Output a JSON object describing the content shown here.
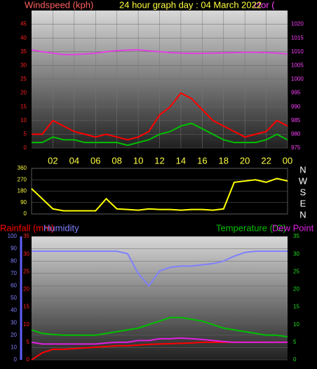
{
  "chart_data": [
    {
      "type": "line",
      "title": "24 hour graph day : 04 March 2022",
      "ylabel": "Windspeed (kph)",
      "y2label": "ctor (",
      "x": [
        0,
        1,
        2,
        3,
        4,
        5,
        6,
        7,
        8,
        9,
        10,
        11,
        12,
        13,
        14,
        15,
        16,
        17,
        18,
        19,
        20,
        21,
        22,
        23,
        24
      ],
      "xlim": [
        0,
        24
      ],
      "xticks": [
        {
          "value": 2,
          "label": "02"
        },
        {
          "value": 4,
          "label": "04"
        },
        {
          "value": 6,
          "label": "06"
        },
        {
          "value": 8,
          "label": "08"
        },
        10,
        12,
        14,
        16,
        18,
        20,
        22,
        {
          "value": 24,
          "label": "00"
        }
      ],
      "ylim": [
        0,
        50
      ],
      "yticks": [
        0,
        5,
        10,
        15,
        20,
        25,
        30,
        35,
        40,
        45
      ],
      "ycolor": "#ff2020",
      "y2lim": [
        975,
        1025
      ],
      "y2ticks": [
        975,
        980,
        985,
        990,
        995,
        1000,
        1005,
        1010,
        1015,
        1020
      ],
      "y2color": "#ff40ff",
      "grid": true,
      "series": [
        {
          "color": "#ff0000",
          "values": [
            5,
            5,
            10,
            8,
            6,
            5,
            4,
            5,
            4,
            3,
            4,
            6,
            12,
            15,
            20,
            18,
            14,
            10,
            8,
            6,
            4,
            5,
            6,
            10,
            8
          ]
        },
        {
          "color": "#00c000",
          "values": [
            2,
            2,
            4,
            3,
            3,
            2,
            2,
            2,
            2,
            1,
            2,
            3,
            5,
            6,
            8,
            9,
            7,
            5,
            3,
            2,
            2,
            2,
            3,
            5,
            3
          ]
        },
        {
          "color": "#e040e0",
          "axis": "y2",
          "values": [
            1010.7,
            1010,
            1009.5,
            1009,
            1009,
            1009.2,
            1009.5,
            1010,
            1010.4,
            1010.6,
            1010.7,
            1010.3,
            1010,
            1009.7,
            1009.5,
            1009.4,
            1009.4,
            1009.5,
            1009.6,
            1009.7,
            1009.8,
            1009.8,
            1009.7,
            1009.5,
            1009.2
          ]
        }
      ]
    },
    {
      "type": "line",
      "x": [
        0,
        1,
        2,
        3,
        4,
        5,
        6,
        7,
        8,
        9,
        10,
        11,
        12,
        13,
        14,
        15,
        16,
        17,
        18,
        19,
        20,
        21,
        22,
        23,
        24
      ],
      "xlim": [
        0,
        24
      ],
      "ylim": [
        0,
        360
      ],
      "yticks": [
        0,
        90,
        180,
        270,
        360
      ],
      "ycolor": "#ffff40",
      "y2lim": [
        0,
        360
      ],
      "y2ticks": [
        {
          "value": 0,
          "label": "N"
        },
        {
          "value": 90,
          "label": "E"
        },
        {
          "value": 180,
          "label": "S"
        },
        {
          "value": 270,
          "label": "W"
        },
        {
          "value": 360,
          "label": "N"
        }
      ],
      "y2color": "#ffffff",
      "grid": true,
      "series": [
        {
          "color": "#ffff00",
          "values": [
            200,
            120,
            40,
            25,
            25,
            25,
            25,
            120,
            40,
            35,
            30,
            40,
            35,
            35,
            30,
            35,
            35,
            30,
            40,
            250,
            260,
            270,
            250,
            280,
            260
          ]
        }
      ]
    },
    {
      "type": "line",
      "x": [
        0,
        1,
        2,
        3,
        4,
        5,
        6,
        7,
        8,
        9,
        10,
        11,
        12,
        13,
        14,
        15,
        16,
        17,
        18,
        19,
        20,
        21,
        22,
        23,
        24
      ],
      "xlim": [
        0,
        24
      ],
      "ylim": [
        0,
        100
      ],
      "yticks": [
        0,
        10,
        20,
        30,
        40,
        50,
        60,
        70,
        80,
        90,
        100
      ],
      "ycolor": "#8080ff",
      "y3lim": [
        0,
        35
      ],
      "y3ticks": [
        0,
        5,
        10,
        15,
        20,
        25,
        30,
        35
      ],
      "y3color": "#ff2020",
      "y2lim": [
        0,
        35
      ],
      "y2ticks": [
        0,
        5,
        10,
        15,
        20,
        25,
        30,
        35
      ],
      "y2color": "#20e020",
      "grid": true,
      "series": [
        {
          "name": "Rainfall (mm)",
          "color": "#ff0000",
          "axis": "y3",
          "values": [
            0,
            2,
            3,
            3,
            3.2,
            3.4,
            3.6,
            3.8,
            4,
            4,
            4.2,
            4.4,
            4.5,
            4.6,
            4.7,
            4.8,
            5,
            5,
            5,
            5,
            5,
            5,
            5,
            5,
            5
          ]
        },
        {
          "name": "Humidity",
          "color": "#8080ff",
          "values": [
            88,
            88,
            88,
            88,
            88,
            88,
            88,
            88,
            88,
            86,
            70,
            60,
            72,
            75,
            76,
            76,
            77,
            78,
            80,
            84,
            87,
            88,
            88,
            88,
            88
          ]
        },
        {
          "name": "Temperature (°C)",
          "color": "#00c000",
          "axis": "y2",
          "values": [
            8.5,
            7.5,
            7.2,
            7,
            7,
            7,
            7,
            7.5,
            8,
            8.5,
            9,
            10,
            11,
            12,
            12,
            11.5,
            11,
            10,
            9,
            8.5,
            8,
            7.5,
            7,
            7,
            6.5
          ]
        },
        {
          "name": "Dew Point",
          "color": "#e020e0",
          "axis": "y2",
          "values": [
            5,
            4.5,
            4.5,
            4.5,
            4.5,
            4.5,
            4.5,
            4.8,
            5,
            5,
            5.5,
            5.5,
            6,
            6,
            6.2,
            6,
            5.8,
            5.5,
            5.2,
            5,
            5,
            5,
            5,
            5,
            5
          ]
        }
      ]
    }
  ]
}
